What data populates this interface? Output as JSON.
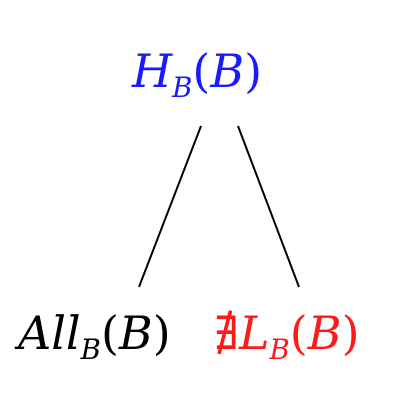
{
  "diagram": {
    "root": {
      "main": "H",
      "sub": "B",
      "arg": "B",
      "color": "#1a1aff"
    },
    "left_child": {
      "main": "All",
      "sub": "B",
      "arg": "B",
      "color": "#000000"
    },
    "right_child": {
      "relation": "∄",
      "main": "L",
      "sub": "B",
      "arg": "B",
      "color": "#ff1a1a"
    },
    "edges": [
      {
        "from": "root",
        "to": "left_child"
      },
      {
        "from": "root",
        "to": "right_child"
      }
    ]
  }
}
